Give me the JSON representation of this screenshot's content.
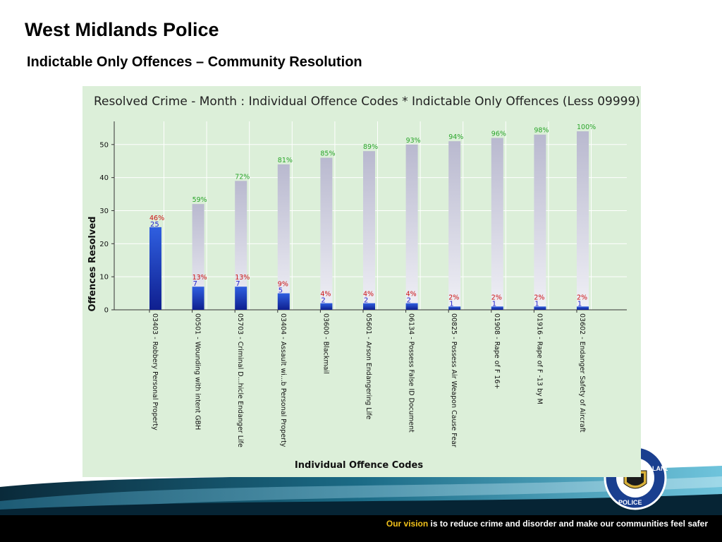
{
  "header": {
    "title": "West Midlands Police",
    "subtitle": "Indictable Only Offences – Community Resolution"
  },
  "chart_data": {
    "type": "bar",
    "title": "Resolved Crime - Month : Individual Offence Codes * Indictable Only Offences (Less 09999)",
    "xlabel": "Individual Offence Codes",
    "ylabel": "Offences Resolved",
    "ylim": [
      0,
      57
    ],
    "yticks": [
      0,
      10,
      20,
      30,
      40,
      50
    ],
    "grid": true,
    "categories": [
      "03403 - Robbery Personal Property",
      "00501 - Wounding with intent GBH",
      "05703 - Criminal D...hicle Endanger Life",
      "03404 - Assault wi...b Personal Property",
      "03600 - Blackmail",
      "05601 - Arson Endangering Life",
      "06134 - Possess False ID Document",
      "00825 - Possess Air Weapon Cause Fear",
      "01908 - Rape of F 16+",
      "01916 - Rape of F -13 by M",
      "03602 - Endanger Safety of Aircraft"
    ],
    "values": [
      25,
      7,
      7,
      5,
      2,
      2,
      2,
      1,
      1,
      1,
      1
    ],
    "value_labels": [
      "25",
      "7",
      "7",
      "5",
      "2",
      "2",
      "2",
      "1",
      "1",
      "1",
      "1"
    ],
    "percent_labels": [
      "46%",
      "13%",
      "13%",
      "9%",
      "4%",
      "4%",
      "4%",
      "2%",
      "2%",
      "2%",
      "2%"
    ],
    "cumulative_values": [
      25,
      32,
      39,
      44,
      46,
      48,
      50,
      51,
      52,
      53,
      54
    ],
    "cumulative_percent_labels": [
      "",
      "59%",
      "72%",
      "81%",
      "85%",
      "89%",
      "93%",
      "94%",
      "96%",
      "98%",
      "100%"
    ],
    "colors": {
      "bar": "#1f3fbf",
      "cumulative": "#c3c3d8",
      "panel": "#dcefd9",
      "percent_top": "#2aa52a",
      "percent_low": "#cc1111",
      "value_low": "#2222cc"
    }
  },
  "footer": {
    "vision_lead": "Our vision",
    "vision_rest": " is to reduce crime and disorder and make our communities feel safer",
    "logo_text": "WEST MIDLANDS POLICE",
    "logo_visible_text": [
      "LANDS",
      "POLICE"
    ]
  }
}
